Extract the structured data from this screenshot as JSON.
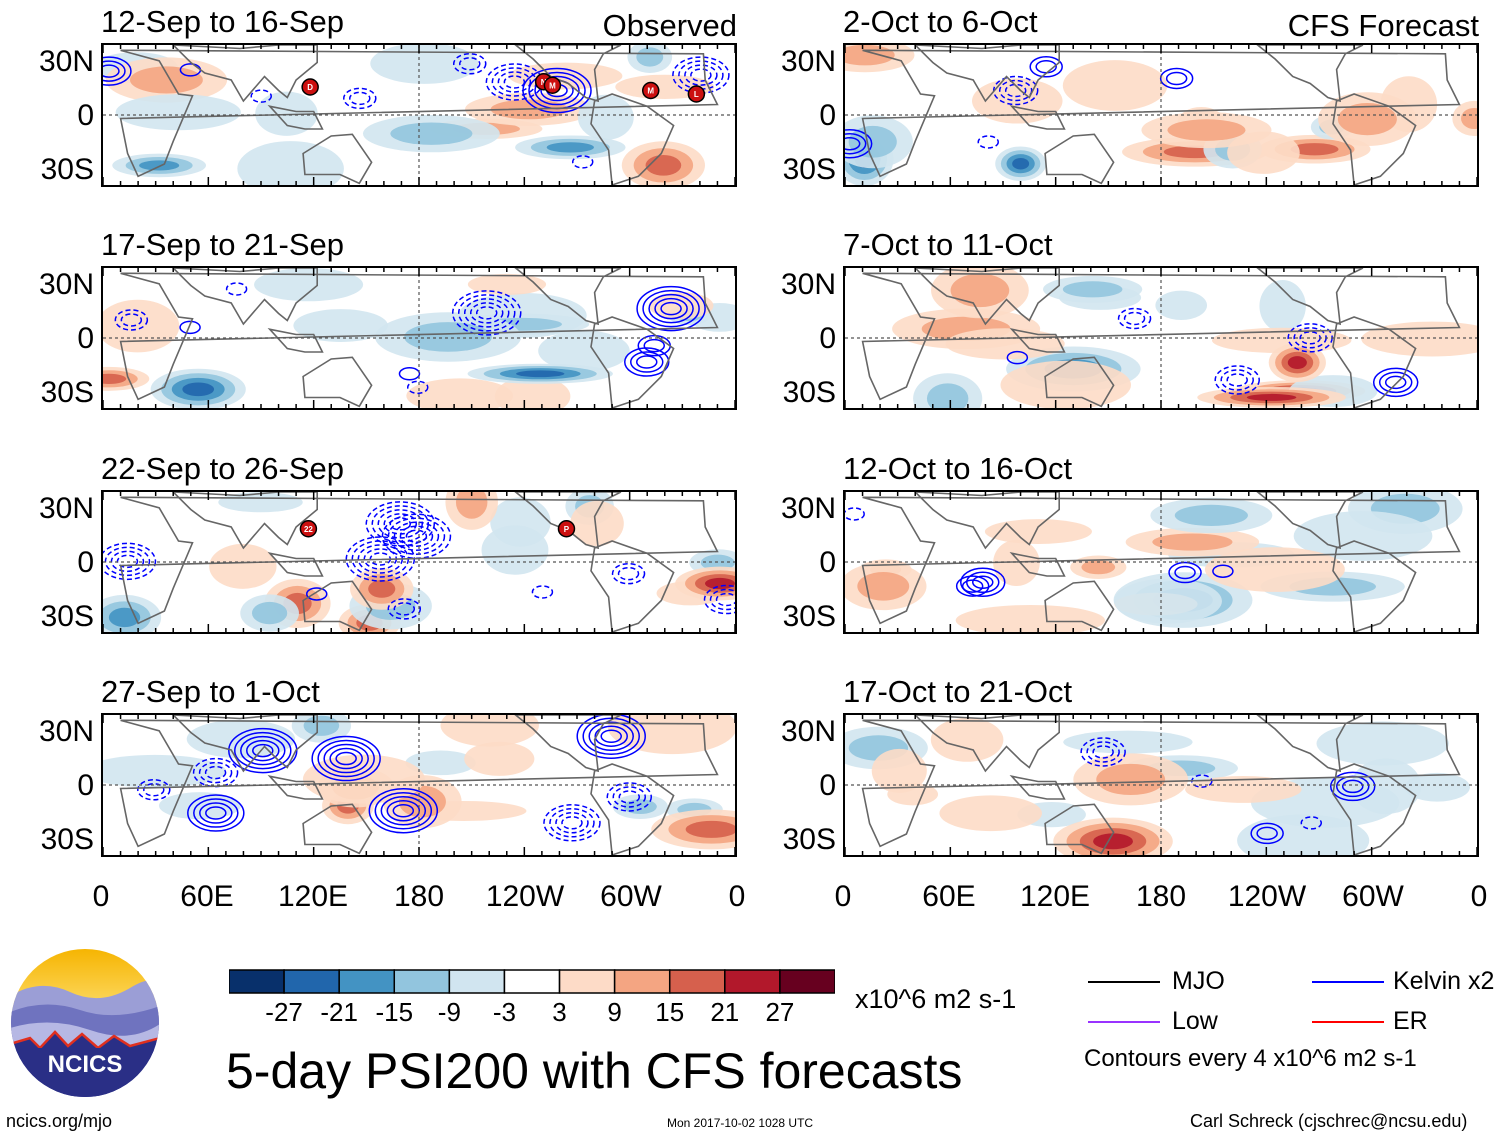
{
  "chart_data": [
    {
      "type": "heatmap",
      "column": "Observed",
      "title": "12-Sep to 16-Sep",
      "header": "Observed"
    },
    {
      "type": "heatmap",
      "column": "Observed",
      "title": "17-Sep to 21-Sep",
      "header": ""
    },
    {
      "type": "heatmap",
      "column": "Observed",
      "title": "22-Sep to 26-Sep",
      "header": ""
    },
    {
      "type": "heatmap",
      "column": "Observed",
      "title": "27-Sep to 1-Oct",
      "header": ""
    },
    {
      "type": "heatmap",
      "column": "CFS Forecast",
      "title": "2-Oct to 6-Oct",
      "header": "CFS Forecast"
    },
    {
      "type": "heatmap",
      "column": "CFS Forecast",
      "title": "7-Oct to 11-Oct",
      "header": ""
    },
    {
      "type": "heatmap",
      "column": "CFS Forecast",
      "title": "12-Oct to 16-Oct",
      "header": ""
    },
    {
      "type": "heatmap",
      "column": "CFS Forecast",
      "title": "17-Oct to 21-Oct",
      "header": ""
    }
  ],
  "axes": {
    "y_ticks": [
      "30N",
      "0",
      "30S"
    ],
    "x_ticks": [
      "0",
      "60E",
      "120E",
      "180",
      "120W",
      "60W",
      "0"
    ],
    "lat_range": [
      -40,
      40
    ],
    "lon_range": [
      0,
      360
    ]
  },
  "colorbar": {
    "labels": [
      "-27",
      "-21",
      "-15",
      "-9",
      "-3",
      "3",
      "9",
      "15",
      "21",
      "27"
    ],
    "colors": [
      "#08306b",
      "#2166ac",
      "#4393c3",
      "#92c5de",
      "#d1e5f0",
      "#ffffff",
      "#fddbc7",
      "#f4a582",
      "#d6604d",
      "#b2182b",
      "#67001f"
    ],
    "units": "x10^6 m2 s-1"
  },
  "legend": {
    "items": [
      {
        "label": "MJO",
        "color": "#000000"
      },
      {
        "label": "Kelvin x2",
        "color": "#0000ff"
      },
      {
        "label": "Low",
        "color": "#9933ff"
      },
      {
        "label": "ER",
        "color": "#ff0000"
      }
    ],
    "contour_note": "Contours every 4 x10^6 m2 s-1"
  },
  "storms": [
    {
      "panel": 0,
      "label": "D",
      "lon": 118,
      "lat": 16
    },
    {
      "panel": 0,
      "label": "N",
      "lon": 251,
      "lat": 19
    },
    {
      "panel": 0,
      "label": "M",
      "lon": 256,
      "lat": 17
    },
    {
      "panel": 0,
      "label": "M",
      "lon": 312,
      "lat": 14
    },
    {
      "panel": 0,
      "label": "L",
      "lon": 338,
      "lat": 12
    },
    {
      "panel": 2,
      "label": "22",
      "lon": 117,
      "lat": 19
    },
    {
      "panel": 2,
      "label": "P",
      "lon": 264,
      "lat": 19
    }
  ],
  "logo": {
    "text": "NCICS"
  },
  "main_title": "5-day PSI200 with CFS forecasts",
  "footer": {
    "left": "ncics.org/mjo",
    "center": "Mon 2017-10-02 1028 UTC",
    "right": "Carl Schreck (cjschrec@ncsu.edu)"
  }
}
